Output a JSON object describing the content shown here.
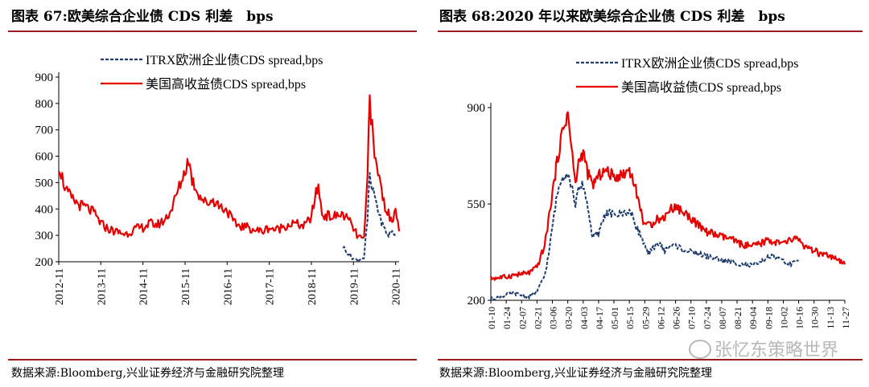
{
  "left_title": "图表 67:欧美综合企业债 CDS 利差　bps",
  "right_title": "图表 68:2020 年以来欧美综合企业债 CDS 利差　bps",
  "source_left": "数据来源:Bloomberg,兴业证券经济与金融研究院整理",
  "source_right": "数据来源:Bloomberg,兴业证券经济与金融研究院整理",
  "watermark": "张忆东策略世界",
  "watermark_icon": "wechat-icon",
  "colors": {
    "itrx": "#1f3c6e",
    "us_hy": "#e60000",
    "rule": "#9b1d20"
  },
  "chart_data": [
    {
      "type": "line",
      "xlabel": "",
      "ylabel": "",
      "ylim": [
        200,
        900
      ],
      "yticks": [
        200,
        300,
        400,
        500,
        600,
        700,
        800,
        900
      ],
      "x_ticks": [
        "2012-11",
        "2013-11",
        "2014-11",
        "2015-11",
        "2016-11",
        "2017-11",
        "2018-11",
        "2019-11",
        "2020-11"
      ],
      "x_range": [
        "2012-11",
        "2020-12"
      ],
      "grid": false,
      "legend_position": "top-center",
      "series": [
        {
          "name": "ITRX欧洲企业债CDS spread,bps",
          "style": "dashed",
          "points": [
            [
              "2019-08",
              258
            ],
            [
              "2019-09",
              238
            ],
            [
              "2019-10",
              225
            ],
            [
              "2019-11",
              212
            ],
            [
              "2019-12",
              205
            ],
            [
              "2020-01",
              210
            ],
            [
              "2020-02",
              215
            ],
            [
              "2020-03",
              360
            ],
            [
              "2020-03-20",
              540
            ],
            [
              "2020-04",
              480
            ],
            [
              "2020-05",
              455
            ],
            [
              "2020-06",
              395
            ],
            [
              "2020-07",
              350
            ],
            [
              "2020-08",
              320
            ],
            [
              "2020-09",
              300
            ],
            [
              "2020-10",
              315
            ],
            [
              "2020-11",
              305
            ]
          ]
        },
        {
          "name": "美国高收益债CDS spread,bps",
          "style": "solid",
          "points": [
            [
              "2012-11",
              570
            ],
            [
              "2013-01",
              470
            ],
            [
              "2013-03",
              435
            ],
            [
              "2013-05",
              415
            ],
            [
              "2013-07",
              405
            ],
            [
              "2013-09",
              385
            ],
            [
              "2013-11",
              345
            ],
            [
              "2014-01",
              325
            ],
            [
              "2014-03",
              315
            ],
            [
              "2014-06",
              305
            ],
            [
              "2014-09",
              325
            ],
            [
              "2014-11",
              330
            ],
            [
              "2015-01",
              345
            ],
            [
              "2015-03",
              340
            ],
            [
              "2015-05",
              355
            ],
            [
              "2015-07",
              395
            ],
            [
              "2015-09",
              470
            ],
            [
              "2015-11",
              545
            ],
            [
              "2015-12",
              590
            ],
            [
              "2016-01",
              510
            ],
            [
              "2016-03",
              455
            ],
            [
              "2016-05",
              420
            ],
            [
              "2016-07",
              435
            ],
            [
              "2016-09",
              410
            ],
            [
              "2016-11",
              395
            ],
            [
              "2017-01",
              345
            ],
            [
              "2017-03",
              335
            ],
            [
              "2017-05",
              330
            ],
            [
              "2017-07",
              320
            ],
            [
              "2017-09",
              315
            ],
            [
              "2017-11",
              330
            ],
            [
              "2018-01",
              320
            ],
            [
              "2018-03",
              335
            ],
            [
              "2018-06",
              345
            ],
            [
              "2018-09",
              335
            ],
            [
              "2018-11",
              370
            ],
            [
              "2018-12",
              440
            ],
            [
              "2019-01",
              490
            ],
            [
              "2019-02",
              380
            ],
            [
              "2019-05",
              370
            ],
            [
              "2019-08",
              380
            ],
            [
              "2019-10",
              350
            ],
            [
              "2019-12",
              300
            ],
            [
              "2020-02",
              280
            ],
            [
              "2020-03",
              520
            ],
            [
              "2020-03-20",
              870
            ],
            [
              "2020-04",
              760
            ],
            [
              "2020-05",
              590
            ],
            [
              "2020-06",
              545
            ],
            [
              "2020-07",
              470
            ],
            [
              "2020-08",
              410
            ],
            [
              "2020-09",
              380
            ],
            [
              "2020-10",
              345
            ],
            [
              "2020-11",
              420
            ],
            [
              "2020-12",
              315
            ]
          ]
        }
      ]
    },
    {
      "type": "line",
      "xlabel": "",
      "ylabel": "",
      "ylim": [
        200,
        900
      ],
      "yticks": [
        200,
        550,
        900
      ],
      "x_ticks": [
        "01-10",
        "01-24",
        "02-07",
        "02-21",
        "03-06",
        "03-20",
        "04-03",
        "04-17",
        "05-01",
        "05-15",
        "05-29",
        "06-12",
        "06-26",
        "07-10",
        "07-24",
        "08-07",
        "08-21",
        "09-04",
        "09-18",
        "10-02",
        "10-16",
        "10-30",
        "11-13",
        "11-27"
      ],
      "grid": false,
      "legend_position": "top-center",
      "series": [
        {
          "name": "ITRX欧洲企业债CDS spread,bps",
          "style": "dashed",
          "points": [
            [
              0,
              205
            ],
            [
              0.5,
              210
            ],
            [
              1,
              220
            ],
            [
              1.5,
              225
            ],
            [
              2,
              218
            ],
            [
              2.5,
              212
            ],
            [
              3,
              230
            ],
            [
              3.5,
              290
            ],
            [
              3.8,
              380
            ],
            [
              4,
              470
            ],
            [
              4.3,
              580
            ],
            [
              4.6,
              650
            ],
            [
              5,
              660
            ],
            [
              5.3,
              600
            ],
            [
              5.5,
              550
            ],
            [
              5.7,
              600
            ],
            [
              6,
              620
            ],
            [
              6.3,
              540
            ],
            [
              6.6,
              430
            ],
            [
              7,
              440
            ],
            [
              7.3,
              500
            ],
            [
              7.6,
              520
            ],
            [
              8,
              510
            ],
            [
              8.5,
              515
            ],
            [
              9,
              525
            ],
            [
              9.3,
              490
            ],
            [
              9.6,
              450
            ],
            [
              9.9,
              415
            ],
            [
              10.2,
              365
            ],
            [
              10.5,
              385
            ],
            [
              10.8,
              410
            ],
            [
              11,
              400
            ],
            [
              11.3,
              380
            ],
            [
              11.6,
              395
            ],
            [
              12,
              400
            ],
            [
              12.5,
              385
            ],
            [
              13,
              375
            ],
            [
              13.5,
              370
            ],
            [
              14,
              360
            ],
            [
              14.5,
              355
            ],
            [
              15,
              345
            ],
            [
              15.5,
              340
            ],
            [
              16,
              335
            ],
            [
              16.5,
              330
            ],
            [
              17,
              325
            ],
            [
              17.5,
              335
            ],
            [
              18,
              360
            ],
            [
              18.5,
              355
            ],
            [
              19,
              340
            ],
            [
              19.5,
              330
            ],
            [
              20,
              345
            ]
          ]
        },
        {
          "name": "美国高收益债CDS spread,bps",
          "style": "solid",
          "points": [
            [
              0,
              280
            ],
            [
              0.5,
              282
            ],
            [
              1,
              285
            ],
            [
              1.5,
              292
            ],
            [
              2,
              295
            ],
            [
              2.5,
              300
            ],
            [
              3,
              320
            ],
            [
              3.5,
              400
            ],
            [
              3.8,
              510
            ],
            [
              4,
              590
            ],
            [
              4.3,
              700
            ],
            [
              4.6,
              800
            ],
            [
              5,
              880
            ],
            [
              5.3,
              720
            ],
            [
              5.5,
              620
            ],
            [
              5.7,
              700
            ],
            [
              6,
              740
            ],
            [
              6.3,
              660
            ],
            [
              6.6,
              620
            ],
            [
              7,
              650
            ],
            [
              7.3,
              670
            ],
            [
              7.6,
              665
            ],
            [
              8,
              650
            ],
            [
              8.5,
              655
            ],
            [
              9,
              675
            ],
            [
              9.3,
              630
            ],
            [
              9.6,
              560
            ],
            [
              9.9,
              490
            ],
            [
              10.2,
              470
            ],
            [
              10.5,
              480
            ],
            [
              10.8,
              500
            ],
            [
              11,
              490
            ],
            [
              11.3,
              505
            ],
            [
              11.6,
              530
            ],
            [
              12,
              540
            ],
            [
              12.5,
              520
            ],
            [
              13,
              500
            ],
            [
              13.5,
              470
            ],
            [
              14,
              450
            ],
            [
              14.5,
              440
            ],
            [
              15,
              430
            ],
            [
              15.5,
              425
            ],
            [
              16,
              410
            ],
            [
              16.5,
              400
            ],
            [
              17,
              395
            ],
            [
              17.5,
              405
            ],
            [
              18,
              420
            ],
            [
              18.5,
              410
            ],
            [
              19,
              405
            ],
            [
              19.5,
              420
            ],
            [
              20,
              425
            ],
            [
              20.3,
              400
            ],
            [
              20.6,
              385
            ],
            [
              21,
              380
            ],
            [
              21.5,
              365
            ],
            [
              22,
              360
            ],
            [
              22.5,
              345
            ],
            [
              23,
              330
            ]
          ]
        }
      ]
    }
  ]
}
